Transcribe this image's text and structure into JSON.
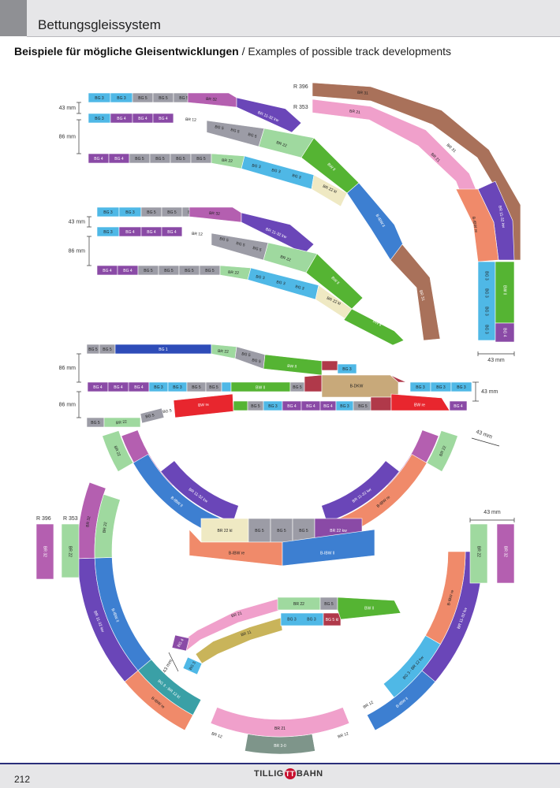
{
  "header": {
    "title": "Bettungsgleissystem",
    "subtitle_de": "Beispiele für mögliche Gleisentwicklungen",
    "subtitle_sep": " / ",
    "subtitle_en": "Examples of possible track developments"
  },
  "dims": {
    "d43": "43 mm",
    "d86": "86 mm",
    "r396": "R 396",
    "r353": "R 353"
  },
  "labels": {
    "bg3": "BG 3",
    "bg4": "BG 4",
    "bg5": "BG 5",
    "br32": "BR 32",
    "br12": "BR 12",
    "br22": "BR 22",
    "br21": "BR 21",
    "br31": "BR 31",
    "br11_32kw": "BR 11-32 kw",
    "br22kl": "BR 22 kl",
    "bw_l": "BW ll",
    "bw_re": "BW re",
    "bibw_l": "B-IBW ll",
    "bibw_re": "B-IBW re",
    "bdkw": "B-DKW",
    "bg1": "BG 1",
    "br11": "BR 11",
    "br30": "BR 3-0",
    "bg3_br12kw": "BG 3 - BR 12 kw",
    "bg3_br12kl": "BG 3 - BR 12 kl",
    "br22kw": "BR 22 kw",
    "bg5kl": "BG 5 kl"
  },
  "colors": {
    "bg3": "#4fb8e6",
    "bg4": "#8a4aa6",
    "bg5": "#9c9ca6",
    "br32": "#b45fb0",
    "br11_32": "#6a46b8",
    "br12": "#ffffff",
    "br22": "#9fd99f",
    "bw": "#55b433",
    "br22kl": "#efe9c3",
    "bibw_blue": "#3d7fd1",
    "br31": "#a9715a",
    "br21": "#f0a0cb",
    "orange": "#f08a6a",
    "red": "#e8262e",
    "dkw": "#c8a97a",
    "bg1": "#2e4cb8",
    "crimson": "#b0394a",
    "teal": "#3aa0a6",
    "olive": "#c9b45a",
    "grayish": "#7e958a"
  },
  "footer": {
    "page_number": "212",
    "brand_left": "TILLIG",
    "brand_mark": "TT",
    "brand_right": "BAHN"
  }
}
